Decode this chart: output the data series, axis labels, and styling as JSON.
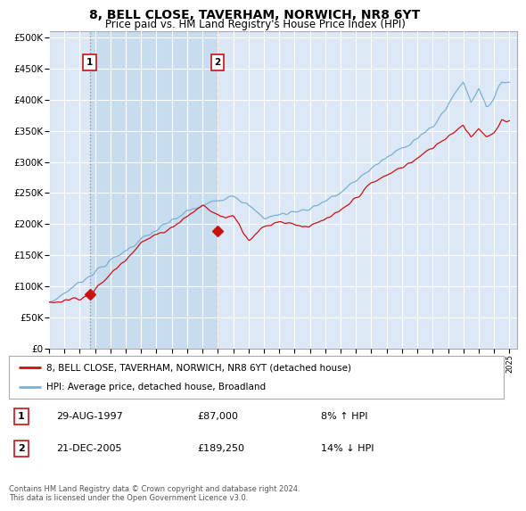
{
  "title": "8, BELL CLOSE, TAVERHAM, NORWICH, NR8 6YT",
  "subtitle": "Price paid vs. HM Land Registry's House Price Index (HPI)",
  "title_fontsize": 10,
  "subtitle_fontsize": 8.5,
  "background_color": "#ffffff",
  "plot_bg_color": "#dce8f5",
  "shaded_region_color": "#c8dcf0",
  "y_ticks": [
    0,
    50000,
    100000,
    150000,
    200000,
    250000,
    300000,
    350000,
    400000,
    450000,
    500000
  ],
  "y_tick_labels": [
    "£0",
    "£50K",
    "£100K",
    "£150K",
    "£200K",
    "£250K",
    "£300K",
    "£350K",
    "£400K",
    "£450K",
    "£500K"
  ],
  "x_start_year": 1995,
  "x_end_year": 2025,
  "purchase1_year": 1997.65,
  "purchase1_price": 87000,
  "purchase1_label": "1",
  "purchase1_date": "29-AUG-1997",
  "purchase1_hpi_pct": "8% ↑ HPI",
  "purchase2_year": 2005.97,
  "purchase2_price": 189250,
  "purchase2_label": "2",
  "purchase2_date": "21-DEC-2005",
  "purchase2_hpi_pct": "14% ↓ HPI",
  "red_line_color": "#cc1111",
  "blue_line_color": "#7ab0d4",
  "dashed1_color": "#888888",
  "dashed2_color": "#ff7777",
  "legend_label_red": "8, BELL CLOSE, TAVERHAM, NORWICH, NR8 6YT (detached house)",
  "legend_label_blue": "HPI: Average price, detached house, Broadland",
  "footnote": "Contains HM Land Registry data © Crown copyright and database right 2024.\nThis data is licensed under the Open Government Licence v3.0.",
  "marker_color": "#cc1111"
}
